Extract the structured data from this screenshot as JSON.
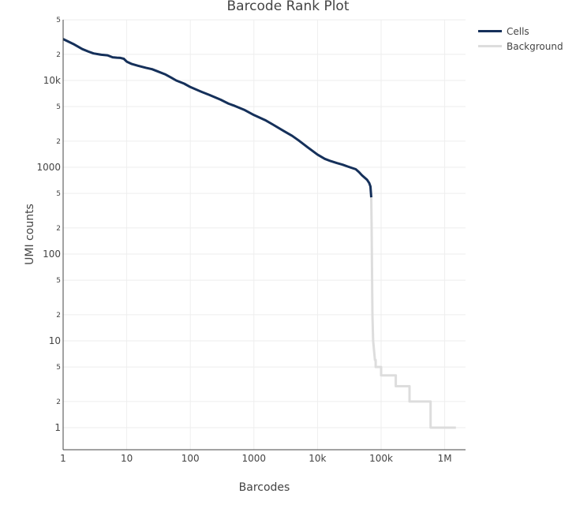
{
  "chart_data": {
    "type": "line",
    "title": "Barcode Rank Plot",
    "xlabel": "Barcodes",
    "ylabel": "UMI counts",
    "xscale": "log",
    "yscale": "log",
    "xlim": [
      1,
      2000000
    ],
    "ylim": [
      0.55,
      50000
    ],
    "grid": true,
    "legend_position": "top-right, outside plot",
    "x_ticks": [
      {
        "value": 1,
        "label": "1"
      },
      {
        "value": 10,
        "label": "10"
      },
      {
        "value": 100,
        "label": "100"
      },
      {
        "value": 1000,
        "label": "1000"
      },
      {
        "value": 10000,
        "label": "10k"
      },
      {
        "value": 100000,
        "label": "100k"
      },
      {
        "value": 1000000,
        "label": "1M"
      }
    ],
    "y_ticks": [
      {
        "value": 1,
        "label": "1",
        "major": true
      },
      {
        "value": 2,
        "label": "2",
        "major": false
      },
      {
        "value": 5,
        "label": "5",
        "major": false
      },
      {
        "value": 10,
        "label": "10",
        "major": true
      },
      {
        "value": 20,
        "label": "2",
        "major": false
      },
      {
        "value": 50,
        "label": "5",
        "major": false
      },
      {
        "value": 100,
        "label": "100",
        "major": true
      },
      {
        "value": 200,
        "label": "2",
        "major": false
      },
      {
        "value": 500,
        "label": "5",
        "major": false
      },
      {
        "value": 1000,
        "label": "1000",
        "major": true
      },
      {
        "value": 2000,
        "label": "2",
        "major": false
      },
      {
        "value": 5000,
        "label": "5",
        "major": false
      },
      {
        "value": 10000,
        "label": "10k",
        "major": true
      },
      {
        "value": 20000,
        "label": "2",
        "major": false
      },
      {
        "value": 50000,
        "label": "5",
        "major": false
      }
    ],
    "series": [
      {
        "name": "Cells",
        "color": "#15305a",
        "x": [
          1,
          1.5,
          2,
          2.5,
          3,
          4,
          5,
          6,
          7,
          8,
          9,
          10,
          12,
          15,
          20,
          25,
          30,
          40,
          50,
          60,
          80,
          100,
          150,
          200,
          300,
          400,
          500,
          700,
          1000,
          1500,
          2000,
          3000,
          4000,
          5000,
          7000,
          10000,
          13000,
          16000,
          20000,
          25000,
          30000,
          40000,
          45000,
          50000,
          55000,
          60000,
          65000,
          68000,
          70000
        ],
        "y": [
          30000,
          26000,
          23000,
          21500,
          20500,
          19800,
          19500,
          18500,
          18300,
          18200,
          17800,
          16500,
          15500,
          14800,
          14000,
          13500,
          12800,
          11800,
          10800,
          10000,
          9200,
          8400,
          7400,
          6800,
          6000,
          5400,
          5100,
          4600,
          4000,
          3500,
          3100,
          2600,
          2300,
          2050,
          1700,
          1400,
          1250,
          1180,
          1120,
          1070,
          1020,
          950,
          880,
          810,
          760,
          720,
          660,
          600,
          450
        ]
      },
      {
        "name": "Background",
        "color": "#dddddd",
        "x": [
          70000,
          71000,
          72000,
          73000,
          75000,
          77000,
          80000,
          82000,
          82000,
          100000,
          100000,
          120000,
          120000,
          170000,
          170000,
          280000,
          280000,
          600000,
          600000,
          1500000
        ],
        "y": [
          450,
          200,
          60,
          20,
          10,
          8,
          6,
          6,
          5,
          5,
          4,
          4,
          4,
          4,
          3,
          3,
          2,
          2,
          1,
          1
        ]
      }
    ]
  },
  "legend": {
    "items": [
      {
        "label": "Cells",
        "color": "#15305a"
      },
      {
        "label": "Background",
        "color": "#dddddd"
      }
    ]
  }
}
